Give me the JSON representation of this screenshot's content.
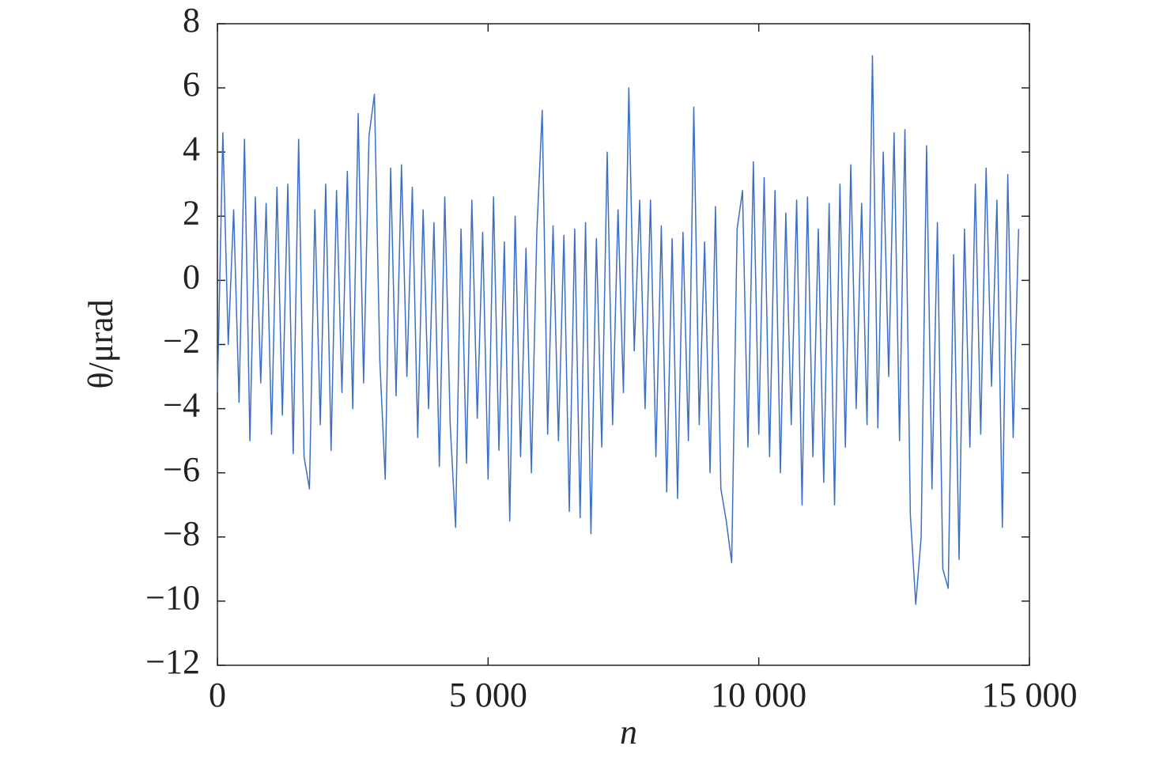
{
  "chart_data": {
    "type": "line",
    "x_label": "n",
    "y_label": "θ/μrad",
    "xlim": [
      0,
      15000
    ],
    "xticks": [
      0,
      {
        "value": 5000,
        "label": "5 000"
      },
      {
        "value": 10000,
        "label": "10 000"
      },
      {
        "value": 15000,
        "label": "15 000"
      }
    ],
    "ylim": [
      -12,
      8
    ],
    "yticks": [
      {
        "value": -12,
        "label": "−12"
      },
      {
        "value": -10,
        "label": "−10"
      },
      {
        "value": -8,
        "label": "−8"
      },
      {
        "value": -6,
        "label": "−6"
      },
      {
        "value": -4,
        "label": "−4"
      },
      {
        "value": -2,
        "label": "−2"
      },
      0,
      2,
      4,
      6,
      8
    ],
    "series": [
      {
        "color": "#3b6fc6",
        "x": [
          0,
          100,
          200,
          300,
          400,
          500,
          600,
          700,
          800,
          900,
          1000,
          1100,
          1200,
          1300,
          1400,
          1500,
          1600,
          1700,
          1800,
          1900,
          2000,
          2100,
          2200,
          2300,
          2400,
          2500,
          2600,
          2700,
          2800,
          2900,
          3000,
          3100,
          3200,
          3300,
          3400,
          3500,
          3600,
          3700,
          3800,
          3900,
          4000,
          4100,
          4200,
          4300,
          4400,
          4500,
          4600,
          4700,
          4800,
          4900,
          5000,
          5100,
          5200,
          5300,
          5400,
          5500,
          5600,
          5700,
          5800,
          5900,
          6000,
          6100,
          6200,
          6300,
          6400,
          6500,
          6600,
          6700,
          6800,
          6900,
          7000,
          7100,
          7200,
          7300,
          7400,
          7500,
          7600,
          7700,
          7800,
          7900,
          8000,
          8100,
          8200,
          8300,
          8400,
          8500,
          8600,
          8700,
          8800,
          8900,
          9000,
          9100,
          9200,
          9300,
          9400,
          9500,
          9600,
          9700,
          9800,
          9900,
          10000,
          10100,
          10200,
          10300,
          10400,
          10500,
          10600,
          10700,
          10800,
          10900,
          11000,
          11100,
          11200,
          11300,
          11400,
          11500,
          11600,
          11700,
          11800,
          11900,
          12000,
          12100,
          12200,
          12300,
          12400,
          12500,
          12600,
          12700,
          12800,
          12900,
          13000,
          13100,
          13200,
          13300,
          13400,
          13500,
          13600,
          13700,
          13800,
          13900,
          14000,
          14100,
          14200,
          14300,
          14400,
          14500,
          14600,
          14700,
          14800
        ],
        "values": [
          -3.5,
          4.6,
          -2,
          2.2,
          -3.8,
          4.4,
          -5,
          2.6,
          -3.2,
          2.4,
          -4.8,
          2.9,
          -4.2,
          3,
          -5.4,
          4.4,
          -5.5,
          -6.5,
          2.2,
          -4.5,
          3,
          -5.3,
          2.8,
          -3.5,
          3.4,
          -4,
          5.2,
          -3.2,
          4.5,
          5.8,
          -2.5,
          -6.2,
          3.5,
          -3.6,
          3.6,
          -3,
          2.9,
          -4.9,
          2.2,
          -4,
          1.8,
          -5.8,
          2.6,
          -4.5,
          -7.7,
          1.6,
          -5.7,
          2.5,
          -4.3,
          1.5,
          -6.2,
          2.6,
          -5.3,
          1.2,
          -7.5,
          2,
          -5.5,
          1,
          -6,
          1.5,
          5.3,
          -4.8,
          1.7,
          -5,
          1.4,
          -7.2,
          1.6,
          -7.4,
          1.8,
          -7.9,
          1.3,
          -5.2,
          4,
          -4.5,
          2.2,
          -3.5,
          6,
          -2.2,
          2.5,
          -4,
          2.5,
          -5.5,
          1.7,
          -6.6,
          1.3,
          -6.8,
          1.5,
          -5,
          5.4,
          -4.5,
          1.2,
          -6,
          2.3,
          -6.5,
          -7.5,
          -8.8,
          1.6,
          2.8,
          -5.2,
          3.7,
          -4.8,
          3.2,
          -5.5,
          2.8,
          -6,
          2.1,
          -4.5,
          2.5,
          -7,
          2.6,
          -5.5,
          1.6,
          -6.3,
          2.4,
          -7,
          3,
          -5.2,
          3.6,
          -4,
          2.4,
          -4.5,
          7,
          -4.6,
          4,
          -3,
          4.6,
          -5,
          4.7,
          -7.3,
          -10.1,
          -8,
          4.2,
          -6.5,
          1.8,
          -9,
          -9.6,
          0.8,
          -8.7,
          1.6,
          -5.2,
          3,
          -4.8,
          3.5,
          -3.3,
          2.5,
          -7.7,
          3.3,
          -4.9,
          1.6
        ]
      }
    ]
  }
}
